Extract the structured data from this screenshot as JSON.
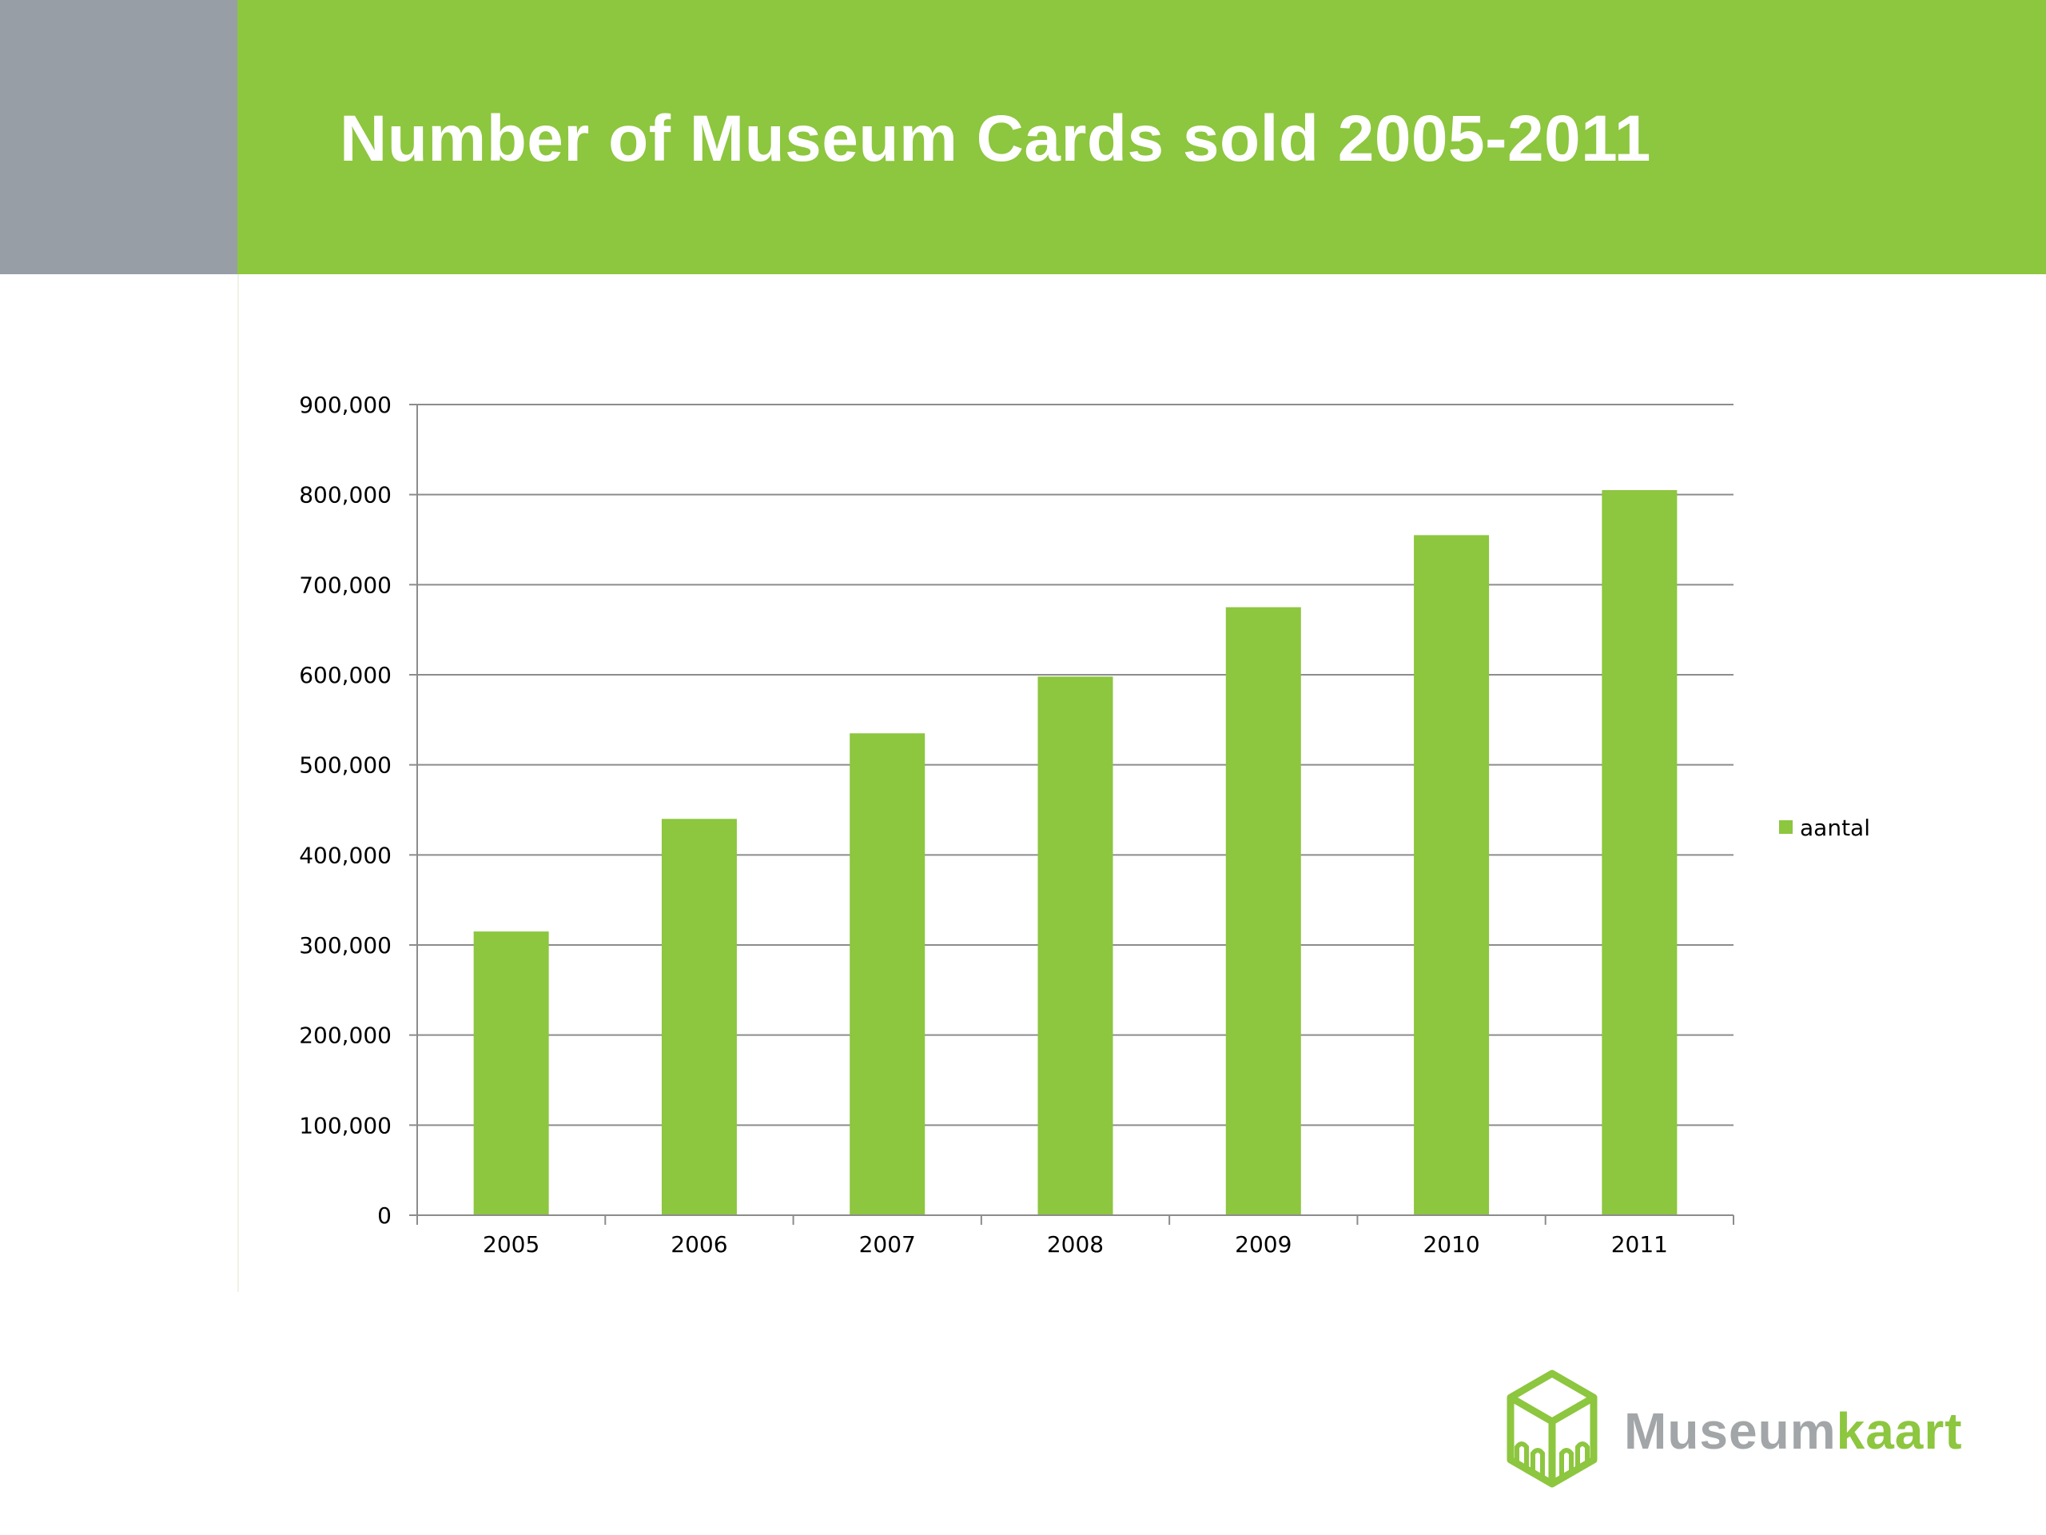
{
  "slide": {
    "title": "Number of Museum Cards sold 2005-2011"
  },
  "logo": {
    "part1": "Museum",
    "part2": "kaart",
    "icon": "museum-building-logo-icon"
  },
  "colors": {
    "brand_green": "#8dc63f",
    "header_gray": "#979ea6",
    "bar_green": "#8dc63f",
    "gridline": "#8c8c8c",
    "logo_gray": "#a3a6a8"
  },
  "chart_data": {
    "type": "bar",
    "title": "",
    "xlabel": "",
    "ylabel": "",
    "categories": [
      "2005",
      "2006",
      "2007",
      "2008",
      "2009",
      "2010",
      "2011"
    ],
    "series": [
      {
        "name": "aantal",
        "values": [
          315000,
          440000,
          535000,
          598000,
          675000,
          755000,
          805000
        ]
      }
    ],
    "ylim": [
      0,
      900000
    ],
    "y_ticks": [
      0,
      100000,
      200000,
      300000,
      400000,
      500000,
      600000,
      700000,
      800000,
      900000
    ],
    "y_tick_labels": [
      "0",
      "100,000",
      "200,000",
      "300,000",
      "400,000",
      "500,000",
      "600,000",
      "700,000",
      "800,000",
      "900,000"
    ],
    "grid": true,
    "legend": "right"
  }
}
